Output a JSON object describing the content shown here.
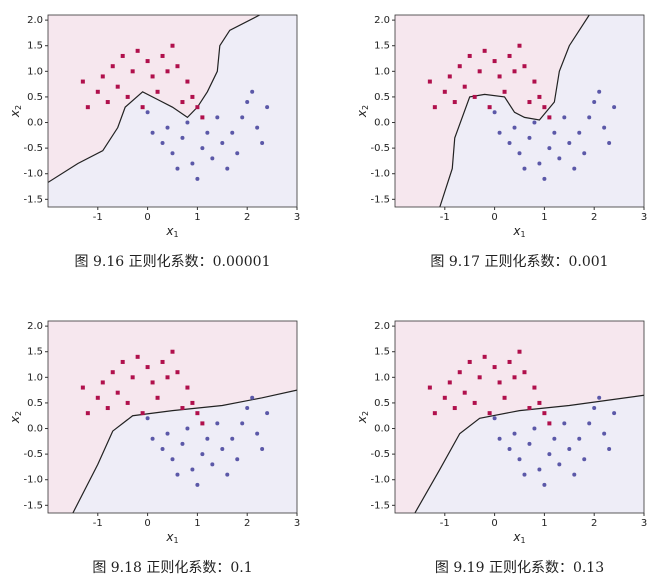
{
  "chart_data": [
    {
      "type": "scatter",
      "caption": "图 9.16 正则化系数：0.00001",
      "xlabel": {
        "base": "x",
        "sub": "1"
      },
      "ylabel": {
        "base": "x",
        "sub": "2"
      },
      "xlim": [
        -2,
        3
      ],
      "ylim": [
        -1.65,
        2.1
      ],
      "xticks": [
        -1,
        0,
        1,
        2,
        3
      ],
      "yticks": [
        {
          "value": 2,
          "label": "2.0"
        },
        1.5,
        {
          "value": 1,
          "label": "1.0"
        },
        0.5,
        {
          "value": 0,
          "label": "0.0"
        },
        -0.5,
        {
          "value": -1,
          "label": "-1.0"
        },
        -1.5
      ],
      "region_colors": [
        "#f6e7ee",
        "#eeedf7"
      ],
      "boundary_color": "#222222",
      "boundary": {
        "x": [
          -2,
          -1.4,
          -0.9,
          -0.6,
          -0.45,
          -0.1,
          0.2,
          0.5,
          0.8,
          1.0,
          1.2,
          1.4,
          1.45,
          1.65,
          2.25
        ],
        "y": [
          -1.17,
          -0.8,
          -0.55,
          -0.1,
          0.3,
          0.6,
          0.45,
          0.3,
          0.1,
          0.3,
          0.6,
          1.0,
          1.5,
          1.8,
          2.1
        ]
      },
      "series": [
        {
          "color": "#b0104c",
          "marker": "s",
          "x": [
            -1.2,
            -1.0,
            -0.9,
            -0.7,
            -0.5,
            -0.3,
            -0.2,
            0,
            0.1,
            0.3,
            0.4,
            0.6,
            0.8,
            0.9,
            1.0,
            1.1,
            -0.6,
            -0.8,
            0.2,
            -0.4,
            0.7,
            -1.3,
            0.5,
            -0.1
          ],
          "y": [
            0.3,
            0.6,
            0.9,
            1.1,
            1.3,
            1.0,
            1.4,
            1.2,
            0.9,
            1.3,
            1.0,
            1.1,
            0.8,
            0.5,
            0.3,
            0.1,
            0.7,
            0.4,
            0.6,
            0.5,
            0.4,
            0.8,
            1.5,
            0.3
          ]
        },
        {
          "color": "#5b58a8",
          "marker": "o",
          "x": [
            0,
            0.1,
            0.3,
            0.5,
            0.7,
            0.9,
            1.1,
            1.3,
            1.5,
            1.7,
            1.9,
            2.0,
            2.2,
            2.4,
            1.6,
            1.0,
            0.4,
            1.2,
            0.8,
            2.1,
            1.8,
            0.6,
            2.3,
            1.4
          ],
          "y": [
            0.2,
            -0.2,
            -0.4,
            -0.6,
            -0.3,
            -0.8,
            -0.5,
            -0.7,
            -0.4,
            -0.2,
            0.1,
            0.4,
            -0.1,
            0.3,
            -0.9,
            -1.1,
            -0.1,
            -0.2,
            0.0,
            0.6,
            -0.6,
            -0.9,
            -0.4,
            0.1
          ]
        }
      ]
    },
    {
      "type": "scatter",
      "caption": "图 9.17 正则化系数：0.001",
      "xlabel": {
        "base": "x",
        "sub": "1"
      },
      "ylabel": {
        "base": "x",
        "sub": "2"
      },
      "xlim": [
        -2,
        3
      ],
      "ylim": [
        -1.65,
        2.1
      ],
      "xticks": [
        -1,
        0,
        1,
        2,
        3
      ],
      "yticks": [
        {
          "value": 2,
          "label": "2.0"
        },
        1.5,
        {
          "value": 1,
          "label": "1.0"
        },
        0.5,
        {
          "value": 0,
          "label": "0.0"
        },
        -0.5,
        {
          "value": -1,
          "label": "-1.0"
        },
        -1.5
      ],
      "region_colors": [
        "#f6e7ee",
        "#eeedf7"
      ],
      "boundary_color": "#222222",
      "boundary": {
        "x": [
          -1.1,
          -0.85,
          -0.8,
          -0.5,
          -0.2,
          0.2,
          0.4,
          0.6,
          0.9,
          1.2,
          1.3,
          1.5,
          1.9
        ],
        "y": [
          -1.65,
          -0.9,
          -0.3,
          0.5,
          0.55,
          0.5,
          0.2,
          0.1,
          0.05,
          0.4,
          1.0,
          1.5,
          2.1
        ]
      },
      "series": [
        {
          "color": "#b0104c",
          "marker": "s",
          "x": [
            -1.2,
            -1.0,
            -0.9,
            -0.7,
            -0.5,
            -0.3,
            -0.2,
            0,
            0.1,
            0.3,
            0.4,
            0.6,
            0.8,
            0.9,
            1.0,
            1.1,
            -0.6,
            -0.8,
            0.2,
            -0.4,
            0.7,
            -1.3,
            0.5,
            -0.1
          ],
          "y": [
            0.3,
            0.6,
            0.9,
            1.1,
            1.3,
            1.0,
            1.4,
            1.2,
            0.9,
            1.3,
            1.0,
            1.1,
            0.8,
            0.5,
            0.3,
            0.1,
            0.7,
            0.4,
            0.6,
            0.5,
            0.4,
            0.8,
            1.5,
            0.3
          ]
        },
        {
          "color": "#5b58a8",
          "marker": "o",
          "x": [
            0,
            0.1,
            0.3,
            0.5,
            0.7,
            0.9,
            1.1,
            1.3,
            1.5,
            1.7,
            1.9,
            2.0,
            2.2,
            2.4,
            1.6,
            1.0,
            0.4,
            1.2,
            0.8,
            2.1,
            1.8,
            0.6,
            2.3,
            1.4
          ],
          "y": [
            0.2,
            -0.2,
            -0.4,
            -0.6,
            -0.3,
            -0.8,
            -0.5,
            -0.7,
            -0.4,
            -0.2,
            0.1,
            0.4,
            -0.1,
            0.3,
            -0.9,
            -1.1,
            -0.1,
            -0.2,
            0.0,
            0.6,
            -0.6,
            -0.9,
            -0.4,
            0.1
          ]
        }
      ]
    },
    {
      "type": "scatter",
      "caption": "图 9.18 正则化系数：0.1",
      "xlabel": {
        "base": "x",
        "sub": "1"
      },
      "ylabel": {
        "base": "x",
        "sub": "2"
      },
      "xlim": [
        -2,
        3
      ],
      "ylim": [
        -1.65,
        2.1
      ],
      "xticks": [
        -1,
        0,
        1,
        2,
        3
      ],
      "yticks": [
        {
          "value": 2,
          "label": "2.0"
        },
        1.5,
        {
          "value": 1,
          "label": "1.0"
        },
        0.5,
        {
          "value": 0,
          "label": "0.0"
        },
        -0.5,
        {
          "value": -1,
          "label": "-1.0"
        },
        -1.5
      ],
      "region_colors": [
        "#f6e7ee",
        "#eeedf7"
      ],
      "boundary_color": "#222222",
      "boundary": {
        "x": [
          -1.5,
          -1.0,
          -0.7,
          -0.3,
          0.5,
          1.5,
          2.3,
          3
        ],
        "y": [
          -1.65,
          -0.7,
          -0.05,
          0.25,
          0.35,
          0.45,
          0.6,
          0.75
        ]
      },
      "series": [
        {
          "color": "#b0104c",
          "marker": "s",
          "x": [
            -1.2,
            -1.0,
            -0.9,
            -0.7,
            -0.5,
            -0.3,
            -0.2,
            0,
            0.1,
            0.3,
            0.4,
            0.6,
            0.8,
            0.9,
            1.0,
            1.1,
            -0.6,
            -0.8,
            0.2,
            -0.4,
            0.7,
            -1.3,
            0.5,
            -0.1
          ],
          "y": [
            0.3,
            0.6,
            0.9,
            1.1,
            1.3,
            1.0,
            1.4,
            1.2,
            0.9,
            1.3,
            1.0,
            1.1,
            0.8,
            0.5,
            0.3,
            0.1,
            0.7,
            0.4,
            0.6,
            0.5,
            0.4,
            0.8,
            1.5,
            0.3
          ]
        },
        {
          "color": "#5b58a8",
          "marker": "o",
          "x": [
            0,
            0.1,
            0.3,
            0.5,
            0.7,
            0.9,
            1.1,
            1.3,
            1.5,
            1.7,
            1.9,
            2.0,
            2.2,
            2.4,
            1.6,
            1.0,
            0.4,
            1.2,
            0.8,
            2.1,
            1.8,
            0.6,
            2.3,
            1.4
          ],
          "y": [
            0.2,
            -0.2,
            -0.4,
            -0.6,
            -0.3,
            -0.8,
            -0.5,
            -0.7,
            -0.4,
            -0.2,
            0.1,
            0.4,
            -0.1,
            0.3,
            -0.9,
            -1.1,
            -0.1,
            -0.2,
            0.0,
            0.6,
            -0.6,
            -0.9,
            -0.4,
            0.1
          ]
        }
      ]
    },
    {
      "type": "scatter",
      "caption": "图 9.19 正则化系数：0.13",
      "xlabel": {
        "base": "x",
        "sub": "1"
      },
      "ylabel": {
        "base": "x",
        "sub": "2"
      },
      "xlim": [
        -2,
        3
      ],
      "ylim": [
        -1.65,
        2.1
      ],
      "xticks": [
        -1,
        0,
        1,
        2,
        3
      ],
      "yticks": [
        {
          "value": 2,
          "label": "2.0"
        },
        1.5,
        {
          "value": 1,
          "label": "1.0"
        },
        0.5,
        {
          "value": 0,
          "label": "0.0"
        },
        -0.5,
        {
          "value": -1,
          "label": "-1.0"
        },
        -1.5
      ],
      "region_colors": [
        "#f6e7ee",
        "#eeedf7"
      ],
      "boundary_color": "#222222",
      "boundary": {
        "x": [
          -1.6,
          -1.1,
          -0.7,
          -0.3,
          0.5,
          1.5,
          3
        ],
        "y": [
          -1.65,
          -0.8,
          -0.1,
          0.2,
          0.35,
          0.45,
          0.65
        ]
      },
      "series": [
        {
          "color": "#b0104c",
          "marker": "s",
          "x": [
            -1.2,
            -1.0,
            -0.9,
            -0.7,
            -0.5,
            -0.3,
            -0.2,
            0,
            0.1,
            0.3,
            0.4,
            0.6,
            0.8,
            0.9,
            1.0,
            1.1,
            -0.6,
            -0.8,
            0.2,
            -0.4,
            0.7,
            -1.3,
            0.5,
            -0.1
          ],
          "y": [
            0.3,
            0.6,
            0.9,
            1.1,
            1.3,
            1.0,
            1.4,
            1.2,
            0.9,
            1.3,
            1.0,
            1.1,
            0.8,
            0.5,
            0.3,
            0.1,
            0.7,
            0.4,
            0.6,
            0.5,
            0.4,
            0.8,
            1.5,
            0.3
          ]
        },
        {
          "color": "#5b58a8",
          "marker": "o",
          "x": [
            0,
            0.1,
            0.3,
            0.5,
            0.7,
            0.9,
            1.1,
            1.3,
            1.5,
            1.7,
            1.9,
            2.0,
            2.2,
            2.4,
            1.6,
            1.0,
            0.4,
            1.2,
            0.8,
            2.1,
            1.8,
            0.6,
            2.3,
            1.4
          ],
          "y": [
            0.2,
            -0.2,
            -0.4,
            -0.6,
            -0.3,
            -0.8,
            -0.5,
            -0.7,
            -0.4,
            -0.2,
            0.1,
            0.4,
            -0.1,
            0.3,
            -0.9,
            -1.1,
            -0.1,
            -0.2,
            0.0,
            0.6,
            -0.6,
            -0.9,
            -0.4,
            0.1
          ]
        }
      ]
    }
  ]
}
